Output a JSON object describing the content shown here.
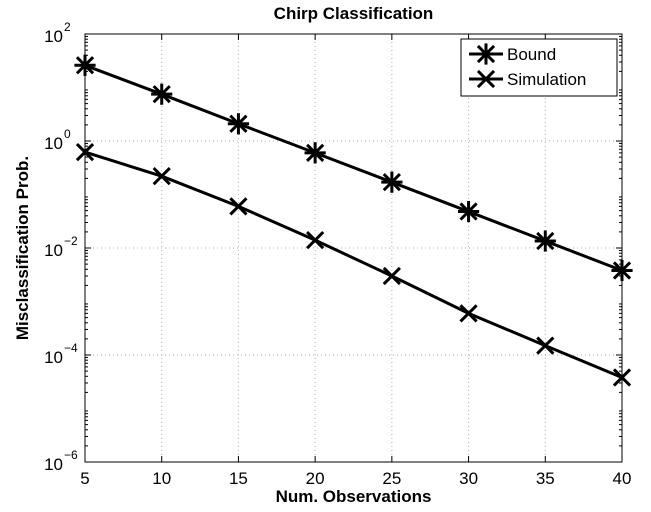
{
  "chart_data": {
    "type": "line",
    "title": "Chirp Classification",
    "xlabel": "Num. Observations",
    "ylabel": "Misclassification Prob.",
    "x": [
      5,
      10,
      15,
      20,
      25,
      30,
      35,
      40
    ],
    "xlim": [
      5,
      40
    ],
    "xticks": [
      "5",
      "10",
      "15",
      "20",
      "25",
      "30",
      "35",
      "40"
    ],
    "yscale": "log",
    "ylim": [
      1e-06,
      100
    ],
    "yticks": [
      {
        "base": "10",
        "exp": "2"
      },
      {
        "base": "10",
        "exp": "0"
      },
      {
        "base": "10",
        "exp": "−2"
      },
      {
        "base": "10",
        "exp": "−4"
      },
      {
        "base": "10",
        "exp": "−6"
      }
    ],
    "grid": true,
    "legend_position": "top-right",
    "series": [
      {
        "name": "Bound",
        "marker": "asterisk",
        "color": "#000000",
        "values": [
          26,
          7.5,
          2.1,
          0.6,
          0.17,
          0.048,
          0.0135,
          0.0038
        ]
      },
      {
        "name": "Simulation",
        "marker": "x",
        "color": "#000000",
        "values": [
          0.62,
          0.22,
          0.06,
          0.014,
          0.003,
          0.0006,
          0.00015,
          3.8e-05
        ]
      }
    ]
  }
}
